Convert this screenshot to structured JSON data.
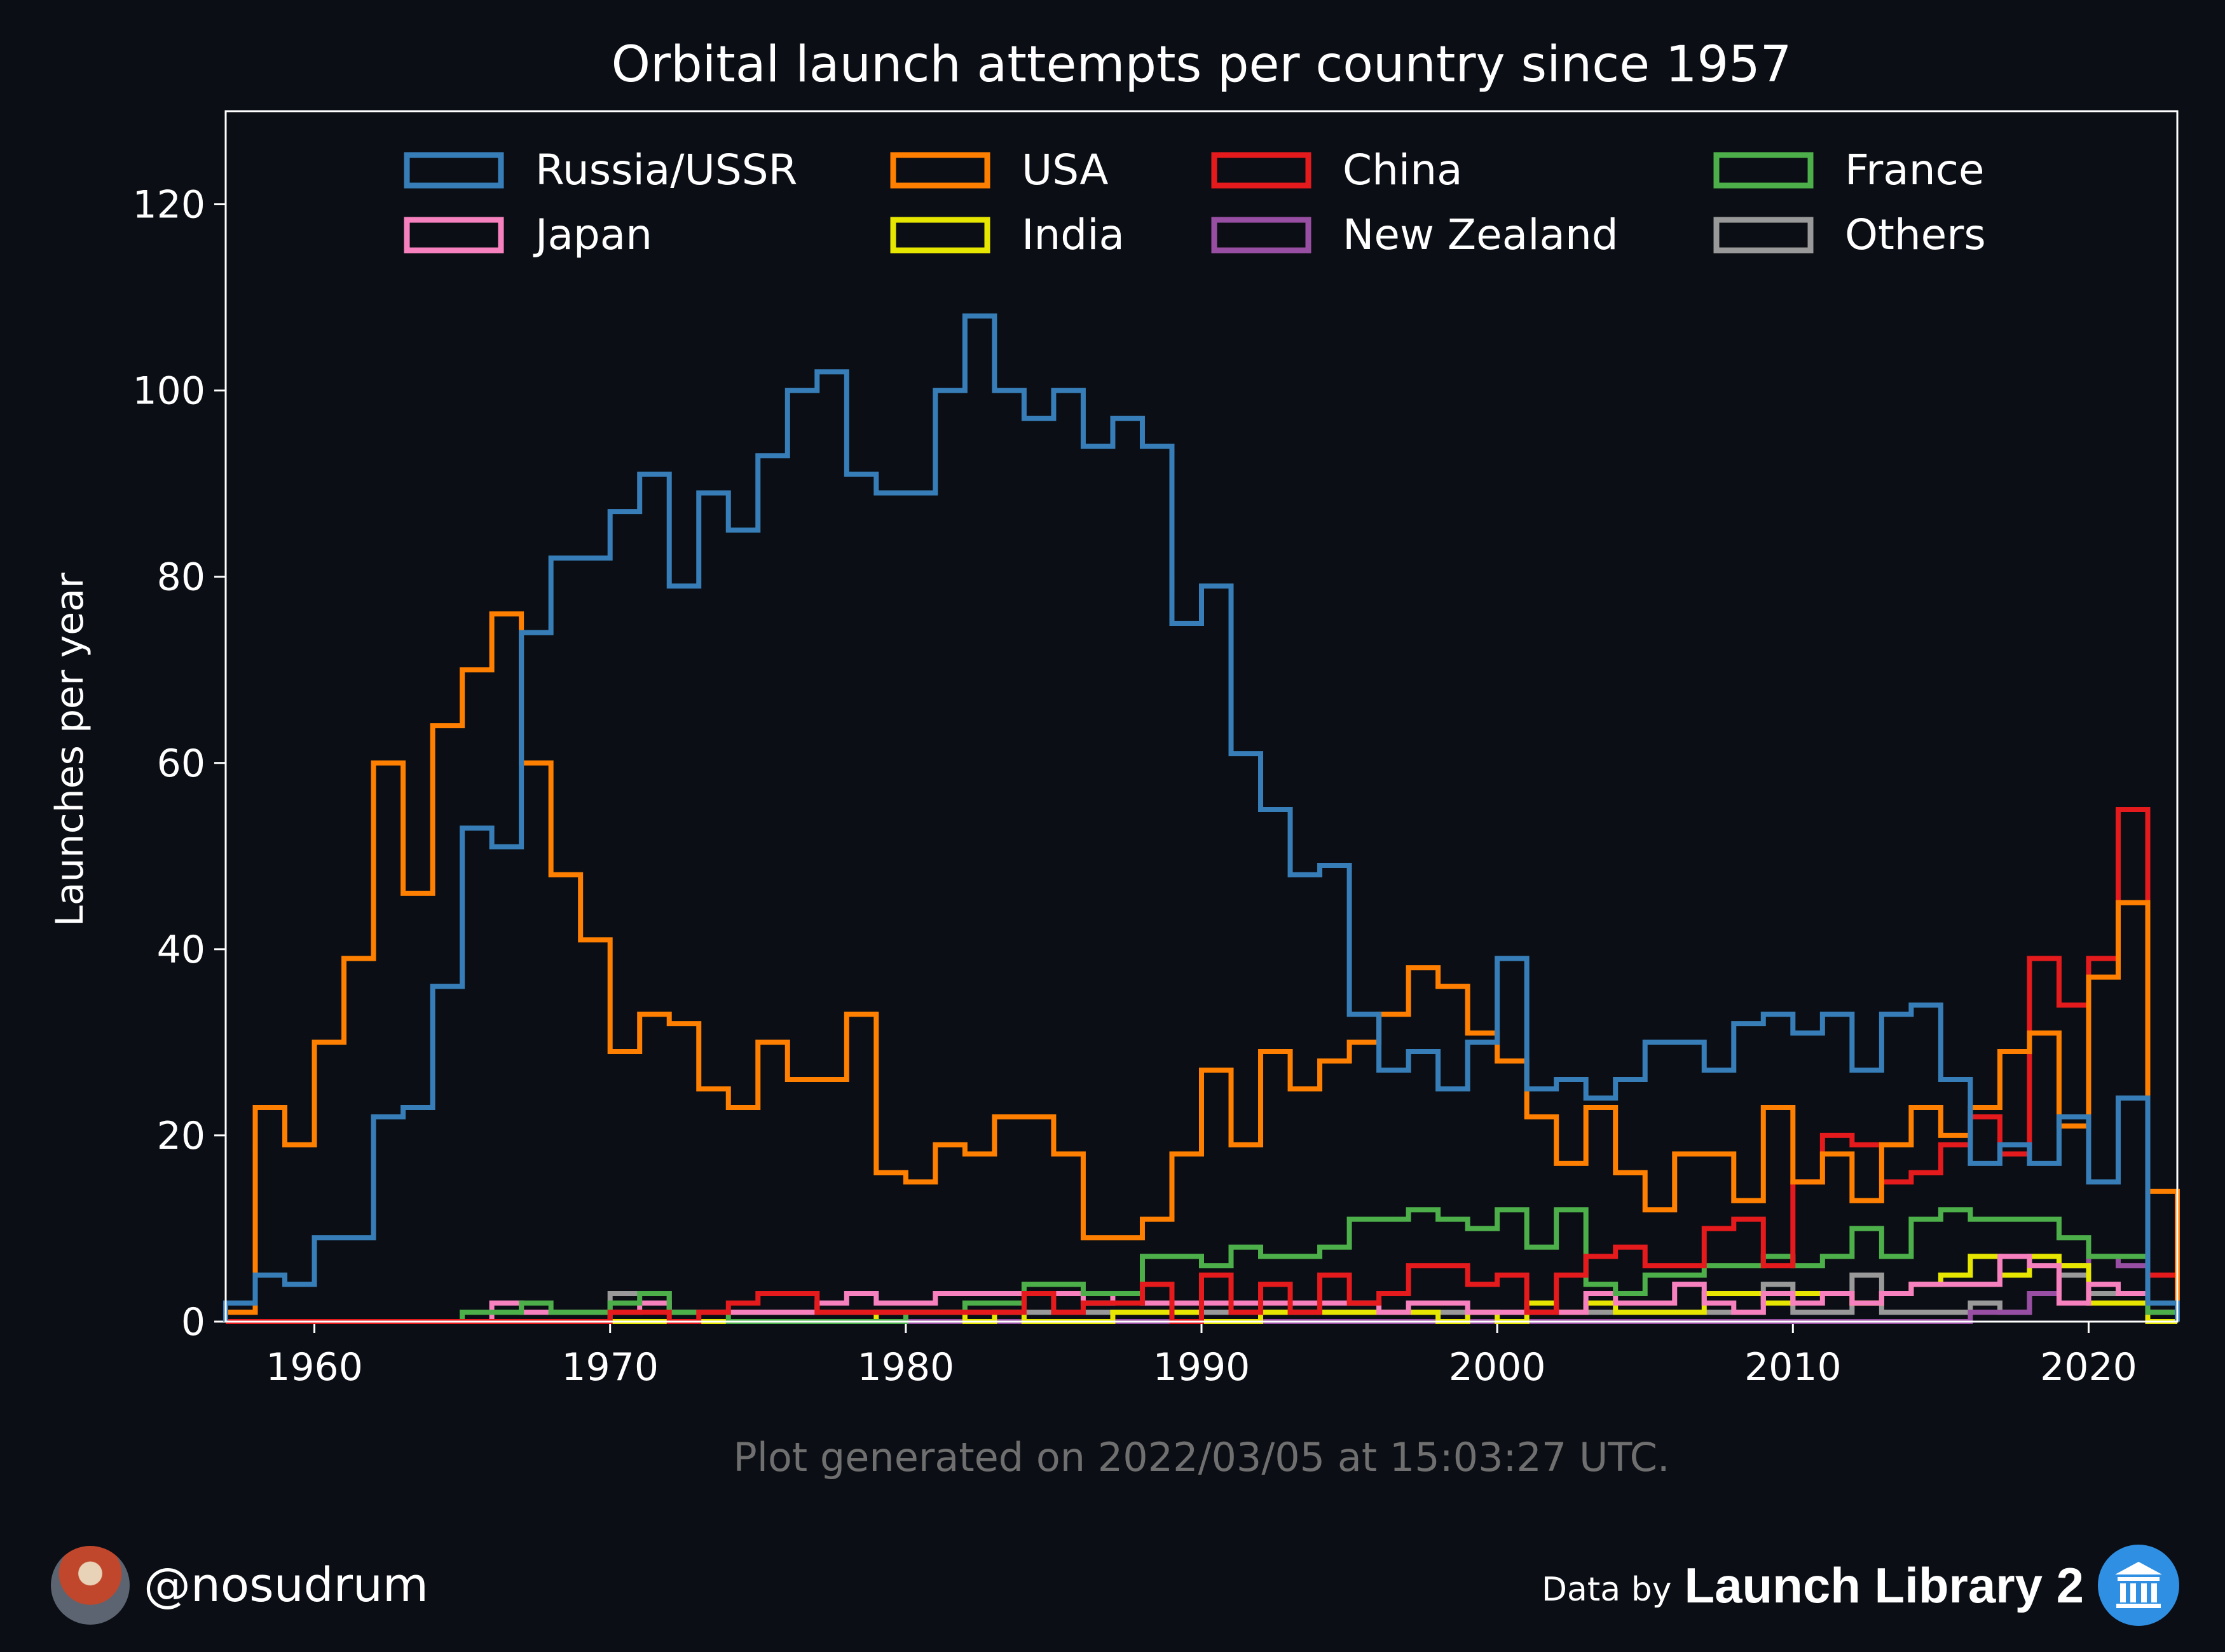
{
  "chart_data": {
    "type": "line",
    "title": "Orbital launch attempts per country since 1957",
    "xlabel": "",
    "ylabel": "Launches per year",
    "xlim": [
      1957,
      2023
    ],
    "ylim": [
      0,
      130
    ],
    "xticks": [
      1960,
      1970,
      1980,
      1990,
      2000,
      2010,
      2020
    ],
    "yticks": [
      0,
      20,
      40,
      60,
      80,
      100,
      120
    ],
    "legend_position": "top",
    "legend_columns": 4,
    "grid": false,
    "x": [
      1957,
      1958,
      1959,
      1960,
      1961,
      1962,
      1963,
      1964,
      1965,
      1966,
      1967,
      1968,
      1969,
      1970,
      1971,
      1972,
      1973,
      1974,
      1975,
      1976,
      1977,
      1978,
      1979,
      1980,
      1981,
      1982,
      1983,
      1984,
      1985,
      1986,
      1987,
      1988,
      1989,
      1990,
      1991,
      1992,
      1993,
      1994,
      1995,
      1996,
      1997,
      1998,
      1999,
      2000,
      2001,
      2002,
      2003,
      2004,
      2005,
      2006,
      2007,
      2008,
      2009,
      2010,
      2011,
      2012,
      2013,
      2014,
      2015,
      2016,
      2017,
      2018,
      2019,
      2020,
      2021,
      2022
    ],
    "series": [
      {
        "name": "Russia/USSR",
        "color": "#377eb8",
        "values": [
          2,
          5,
          4,
          9,
          9,
          22,
          23,
          36,
          53,
          51,
          74,
          82,
          82,
          87,
          91,
          79,
          89,
          85,
          93,
          100,
          102,
          91,
          89,
          89,
          100,
          108,
          100,
          97,
          100,
          94,
          97,
          94,
          75,
          79,
          61,
          55,
          48,
          49,
          33,
          27,
          29,
          25,
          30,
          39,
          25,
          26,
          24,
          26,
          30,
          30,
          27,
          32,
          33,
          31,
          33,
          27,
          33,
          34,
          26,
          17,
          19,
          17,
          22,
          15,
          24,
          2
        ]
      },
      {
        "name": "USA",
        "color": "#ff7f00",
        "values": [
          1,
          23,
          19,
          30,
          39,
          60,
          46,
          64,
          70,
          76,
          60,
          48,
          41,
          29,
          33,
          32,
          25,
          23,
          30,
          26,
          26,
          33,
          16,
          15,
          19,
          18,
          22,
          22,
          18,
          9,
          9,
          11,
          18,
          27,
          19,
          29,
          25,
          28,
          30,
          33,
          38,
          36,
          31,
          28,
          22,
          17,
          23,
          16,
          12,
          18,
          18,
          13,
          23,
          15,
          18,
          13,
          19,
          23,
          20,
          23,
          29,
          31,
          21,
          37,
          45,
          14
        ]
      },
      {
        "name": "China",
        "color": "#e41a1c",
        "values": [
          0,
          0,
          0,
          0,
          0,
          0,
          0,
          0,
          0,
          0,
          0,
          0,
          0,
          1,
          1,
          0,
          1,
          2,
          3,
          3,
          1,
          1,
          1,
          1,
          1,
          1,
          1,
          3,
          1,
          2,
          2,
          4,
          0,
          5,
          1,
          4,
          1,
          5,
          2,
          3,
          6,
          6,
          4,
          5,
          1,
          5,
          7,
          8,
          6,
          6,
          10,
          11,
          6,
          15,
          20,
          19,
          15,
          16,
          19,
          22,
          18,
          39,
          34,
          39,
          55,
          5
        ]
      },
      {
        "name": "France",
        "color": "#4daf4a",
        "values": [
          0,
          0,
          0,
          0,
          0,
          0,
          0,
          0,
          1,
          1,
          2,
          1,
          1,
          2,
          3,
          1,
          1,
          0,
          0,
          0,
          0,
          0,
          0,
          1,
          1,
          2,
          2,
          4,
          4,
          3,
          3,
          7,
          7,
          6,
          8,
          7,
          7,
          8,
          11,
          11,
          12,
          11,
          10,
          12,
          8,
          12,
          4,
          3,
          5,
          5,
          6,
          6,
          7,
          6,
          7,
          10,
          7,
          11,
          12,
          11,
          11,
          11,
          9,
          7,
          7,
          1
        ]
      },
      {
        "name": "Japan",
        "color": "#f781bf",
        "values": [
          0,
          0,
          0,
          0,
          0,
          0,
          0,
          0,
          0,
          2,
          1,
          1,
          1,
          1,
          2,
          1,
          1,
          1,
          1,
          1,
          2,
          3,
          2,
          2,
          3,
          3,
          3,
          3,
          3,
          2,
          3,
          2,
          2,
          2,
          2,
          2,
          2,
          2,
          2,
          1,
          2,
          2,
          1,
          1,
          1,
          1,
          3,
          2,
          2,
          4,
          2,
          1,
          3,
          2,
          3,
          2,
          3,
          4,
          4,
          4,
          7,
          6,
          2,
          4,
          3,
          1
        ]
      },
      {
        "name": "India",
        "color": "#e6e600",
        "values": [
          0,
          0,
          0,
          0,
          0,
          0,
          0,
          0,
          0,
          0,
          0,
          0,
          0,
          0,
          0,
          0,
          0,
          0,
          0,
          0,
          0,
          0,
          1,
          1,
          1,
          0,
          1,
          0,
          0,
          0,
          1,
          1,
          1,
          0,
          0,
          1,
          1,
          1,
          1,
          1,
          1,
          0,
          1,
          0,
          2,
          1,
          2,
          1,
          1,
          1,
          3,
          3,
          2,
          3,
          3,
          2,
          3,
          4,
          5,
          7,
          5,
          7,
          6,
          2,
          2,
          0
        ]
      },
      {
        "name": "New Zealand",
        "color": "#984ea3",
        "values": [
          0,
          0,
          0,
          0,
          0,
          0,
          0,
          0,
          0,
          0,
          0,
          0,
          0,
          0,
          0,
          0,
          0,
          0,
          0,
          0,
          0,
          0,
          0,
          0,
          0,
          0,
          0,
          0,
          0,
          0,
          0,
          0,
          0,
          0,
          0,
          0,
          0,
          0,
          0,
          0,
          0,
          0,
          0,
          0,
          0,
          0,
          0,
          0,
          0,
          0,
          0,
          0,
          0,
          0,
          0,
          0,
          0,
          0,
          0,
          1,
          1,
          3,
          6,
          7,
          6,
          1
        ]
      },
      {
        "name": "Others",
        "color": "#999999",
        "values": [
          0,
          0,
          0,
          0,
          0,
          0,
          0,
          0,
          0,
          0,
          0,
          0,
          0,
          3,
          3,
          1,
          1,
          1,
          1,
          1,
          1,
          1,
          1,
          1,
          1,
          1,
          1,
          1,
          1,
          1,
          1,
          1,
          1,
          1,
          1,
          1,
          1,
          1,
          1,
          1,
          1,
          1,
          1,
          1,
          1,
          1,
          1,
          1,
          1,
          1,
          1,
          1,
          4,
          1,
          1,
          5,
          1,
          1,
          1,
          2,
          1,
          3,
          5,
          3,
          3,
          1
        ]
      }
    ]
  },
  "footer": {
    "generated_note": "Plot generated on 2022/03/05 at 15:03:27 UTC.",
    "author_handle": "@nosudrum",
    "source_prefix": "Data by",
    "source_name": "Launch Library 2"
  },
  "theme": {
    "background": "#0b0e14",
    "foreground": "#ffffff",
    "muted": "#6f6f6f"
  }
}
